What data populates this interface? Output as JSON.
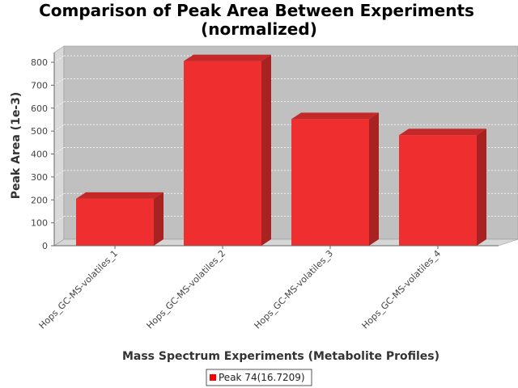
{
  "chart_data": {
    "type": "bar",
    "title_line1": "Comparison of Peak Area Between Experiments",
    "title_line2": "(normalized)",
    "xlabel": "Mass Spectrum Experiments (Metabolite Profiles)",
    "ylabel": "Peak Area (1e-3)",
    "categories": [
      "Hops_GC-MS-volatiles_1",
      "Hops_GC-MS-volatiles_2",
      "Hops_GC-MS-volatiles_3",
      "Hops_GC-MS-volatiles_4"
    ],
    "series": [
      {
        "name": "Peak 74(16.7209)",
        "values": [
          205,
          805,
          552,
          482
        ],
        "color": "#ef2f2f"
      }
    ],
    "ylim": [
      0,
      850
    ],
    "yticks": [
      0,
      100,
      200,
      300,
      400,
      500,
      600,
      700,
      800
    ],
    "grid": true,
    "legend_position": "bottom"
  }
}
